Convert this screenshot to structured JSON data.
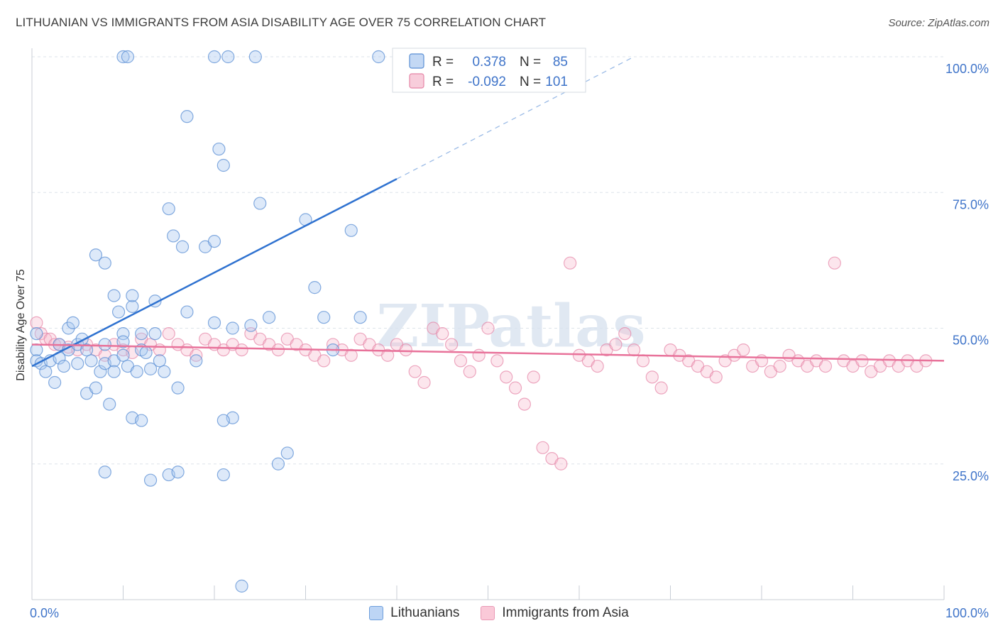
{
  "title": "LITHUANIAN VS IMMIGRANTS FROM ASIA DISABILITY AGE OVER 75 CORRELATION CHART",
  "source": "Source: ZipAtlas.com",
  "watermark": "ZIPatlas",
  "chart_data": {
    "type": "scatter",
    "xlabel": "",
    "ylabel": "Disability Age Over 75",
    "xlim": [
      0,
      100
    ],
    "ylim": [
      0,
      100
    ],
    "x_tick_labels": [
      "0.0%",
      "100.0%"
    ],
    "y_ticks": [
      25,
      50,
      75,
      100
    ],
    "y_tick_labels": [
      "25.0%",
      "50.0%",
      "75.0%",
      "100.0%"
    ],
    "grid": true,
    "legend_top": {
      "placement": "top-center",
      "rows": [
        {
          "r_label": "R =",
          "r_value": "0.378",
          "n_label": "N =",
          "n_value": "85"
        },
        {
          "r_label": "R =",
          "r_value": "-0.092",
          "n_label": "N =",
          "n_value": "101"
        }
      ]
    },
    "legend_bottom": [
      "Lithuanians",
      "Immigrants from Asia"
    ],
    "colors": {
      "blue_fill": "#a9c8f0",
      "blue_stroke": "#5b8fd4",
      "blue_line": "#2f72d0",
      "pink_fill": "#f5b8cc",
      "pink_stroke": "#e585a6",
      "pink_line": "#e8729a",
      "tick_text": "#3f74c9",
      "grid": "#dde3ea"
    },
    "series": [
      {
        "name": "Lithuanians",
        "trend": {
          "x0": 0,
          "y0": 43,
          "x1": 40,
          "y1": 77.5,
          "dash_x1": 66,
          "dash_y1": 100
        },
        "points": [
          [
            10,
            100
          ],
          [
            10.5,
            100
          ],
          [
            20,
            100
          ],
          [
            21.5,
            100
          ],
          [
            24.5,
            100
          ],
          [
            38,
            100
          ],
          [
            0.5,
            49
          ],
          [
            0.5,
            46
          ],
          [
            0.5,
            44
          ],
          [
            1,
            43.5
          ],
          [
            1.5,
            42
          ],
          [
            2,
            44
          ],
          [
            2.5,
            40
          ],
          [
            3,
            47
          ],
          [
            3,
            44.5
          ],
          [
            3.5,
            43
          ],
          [
            4,
            50
          ],
          [
            4,
            46
          ],
          [
            4.5,
            51
          ],
          [
            5,
            47
          ],
          [
            5,
            43.5
          ],
          [
            5.5,
            48
          ],
          [
            6,
            46
          ],
          [
            6,
            38
          ],
          [
            6.5,
            44
          ],
          [
            7,
            39
          ],
          [
            7.5,
            42
          ],
          [
            8,
            47
          ],
          [
            8,
            43.5
          ],
          [
            8.5,
            36
          ],
          [
            9,
            44
          ],
          [
            9,
            42
          ],
          [
            9.5,
            53
          ],
          [
            10,
            49
          ],
          [
            10,
            45
          ],
          [
            10.5,
            43
          ],
          [
            11,
            54
          ],
          [
            11.5,
            42
          ],
          [
            12,
            49
          ],
          [
            12,
            46
          ],
          [
            12.5,
            45.5
          ],
          [
            13,
            42.5
          ],
          [
            13.5,
            55
          ],
          [
            13.5,
            49
          ],
          [
            14,
            44
          ],
          [
            14.5,
            42
          ],
          [
            15,
            72
          ],
          [
            15.5,
            67
          ],
          [
            16,
            39
          ],
          [
            16.5,
            65
          ],
          [
            17,
            53
          ],
          [
            17,
            89
          ],
          [
            18,
            44
          ],
          [
            19,
            65
          ],
          [
            20,
            66
          ],
          [
            20,
            51
          ],
          [
            20.5,
            83
          ],
          [
            21,
            80
          ],
          [
            22,
            33.5
          ],
          [
            22,
            50
          ],
          [
            21,
            33
          ],
          [
            21,
            23
          ],
          [
            23,
            2.5
          ],
          [
            24,
            50.5
          ],
          [
            25,
            73
          ],
          [
            26,
            52
          ],
          [
            27,
            25
          ],
          [
            28,
            27
          ],
          [
            30,
            70
          ],
          [
            31,
            57.5
          ],
          [
            32,
            52
          ],
          [
            33,
            46
          ],
          [
            35,
            68
          ],
          [
            36,
            52
          ],
          [
            7,
            63.5
          ],
          [
            8,
            62
          ],
          [
            9,
            56
          ],
          [
            10,
            47.5
          ],
          [
            11,
            33.5
          ],
          [
            12,
            33
          ],
          [
            13,
            22
          ],
          [
            15,
            23
          ],
          [
            16,
            23.5
          ],
          [
            8,
            23.5
          ],
          [
            11,
            56
          ]
        ]
      },
      {
        "name": "Immigrants from Asia",
        "trend": {
          "x0": 0,
          "y0": 47,
          "x1": 100,
          "y1": 44
        },
        "points": [
          [
            0.5,
            51
          ],
          [
            1,
            49
          ],
          [
            1.5,
            48
          ],
          [
            2,
            48
          ],
          [
            2.5,
            47
          ],
          [
            3,
            47
          ],
          [
            4,
            46.5
          ],
          [
            5,
            46
          ],
          [
            6,
            47
          ],
          [
            7,
            46
          ],
          [
            8,
            45
          ],
          [
            9,
            47
          ],
          [
            10,
            46
          ],
          [
            11,
            45.5
          ],
          [
            12,
            48
          ],
          [
            13,
            47
          ],
          [
            14,
            46
          ],
          [
            15,
            49
          ],
          [
            16,
            47
          ],
          [
            17,
            46
          ],
          [
            18,
            45
          ],
          [
            19,
            48
          ],
          [
            20,
            47
          ],
          [
            21,
            46
          ],
          [
            22,
            47
          ],
          [
            23,
            46
          ],
          [
            24,
            49
          ],
          [
            25,
            48
          ],
          [
            26,
            47
          ],
          [
            27,
            46
          ],
          [
            28,
            48
          ],
          [
            29,
            47
          ],
          [
            30,
            46
          ],
          [
            31,
            45
          ],
          [
            32,
            44
          ],
          [
            33,
            47
          ],
          [
            34,
            46
          ],
          [
            35,
            45
          ],
          [
            36,
            48
          ],
          [
            37,
            47
          ],
          [
            38,
            46
          ],
          [
            39,
            45
          ],
          [
            40,
            47
          ],
          [
            41,
            46
          ],
          [
            42,
            42
          ],
          [
            43,
            40
          ],
          [
            44,
            50
          ],
          [
            45,
            49
          ],
          [
            46,
            47
          ],
          [
            47,
            44
          ],
          [
            48,
            42
          ],
          [
            49,
            45
          ],
          [
            50,
            50
          ],
          [
            51,
            44
          ],
          [
            52,
            41
          ],
          [
            53,
            39
          ],
          [
            54,
            36
          ],
          [
            55,
            41
          ],
          [
            56,
            28
          ],
          [
            57,
            26
          ],
          [
            58,
            25
          ],
          [
            59,
            62
          ],
          [
            60,
            45
          ],
          [
            61,
            44
          ],
          [
            62,
            43
          ],
          [
            63,
            46
          ],
          [
            64,
            47
          ],
          [
            65,
            49
          ],
          [
            66,
            46
          ],
          [
            67,
            44
          ],
          [
            68,
            41
          ],
          [
            69,
            39
          ],
          [
            70,
            46
          ],
          [
            71,
            45
          ],
          [
            72,
            44
          ],
          [
            73,
            43
          ],
          [
            74,
            42
          ],
          [
            75,
            41
          ],
          [
            76,
            44
          ],
          [
            77,
            45
          ],
          [
            78,
            46
          ],
          [
            79,
            43
          ],
          [
            80,
            44
          ],
          [
            81,
            42
          ],
          [
            82,
            43
          ],
          [
            83,
            45
          ],
          [
            84,
            44
          ],
          [
            85,
            43
          ],
          [
            86,
            44
          ],
          [
            87,
            43
          ],
          [
            88,
            62
          ],
          [
            89,
            44
          ],
          [
            90,
            43
          ],
          [
            91,
            44
          ],
          [
            92,
            42
          ],
          [
            93,
            43
          ],
          [
            94,
            44
          ],
          [
            95,
            43
          ],
          [
            96,
            44
          ],
          [
            97,
            43
          ],
          [
            98,
            44
          ]
        ]
      }
    ]
  }
}
